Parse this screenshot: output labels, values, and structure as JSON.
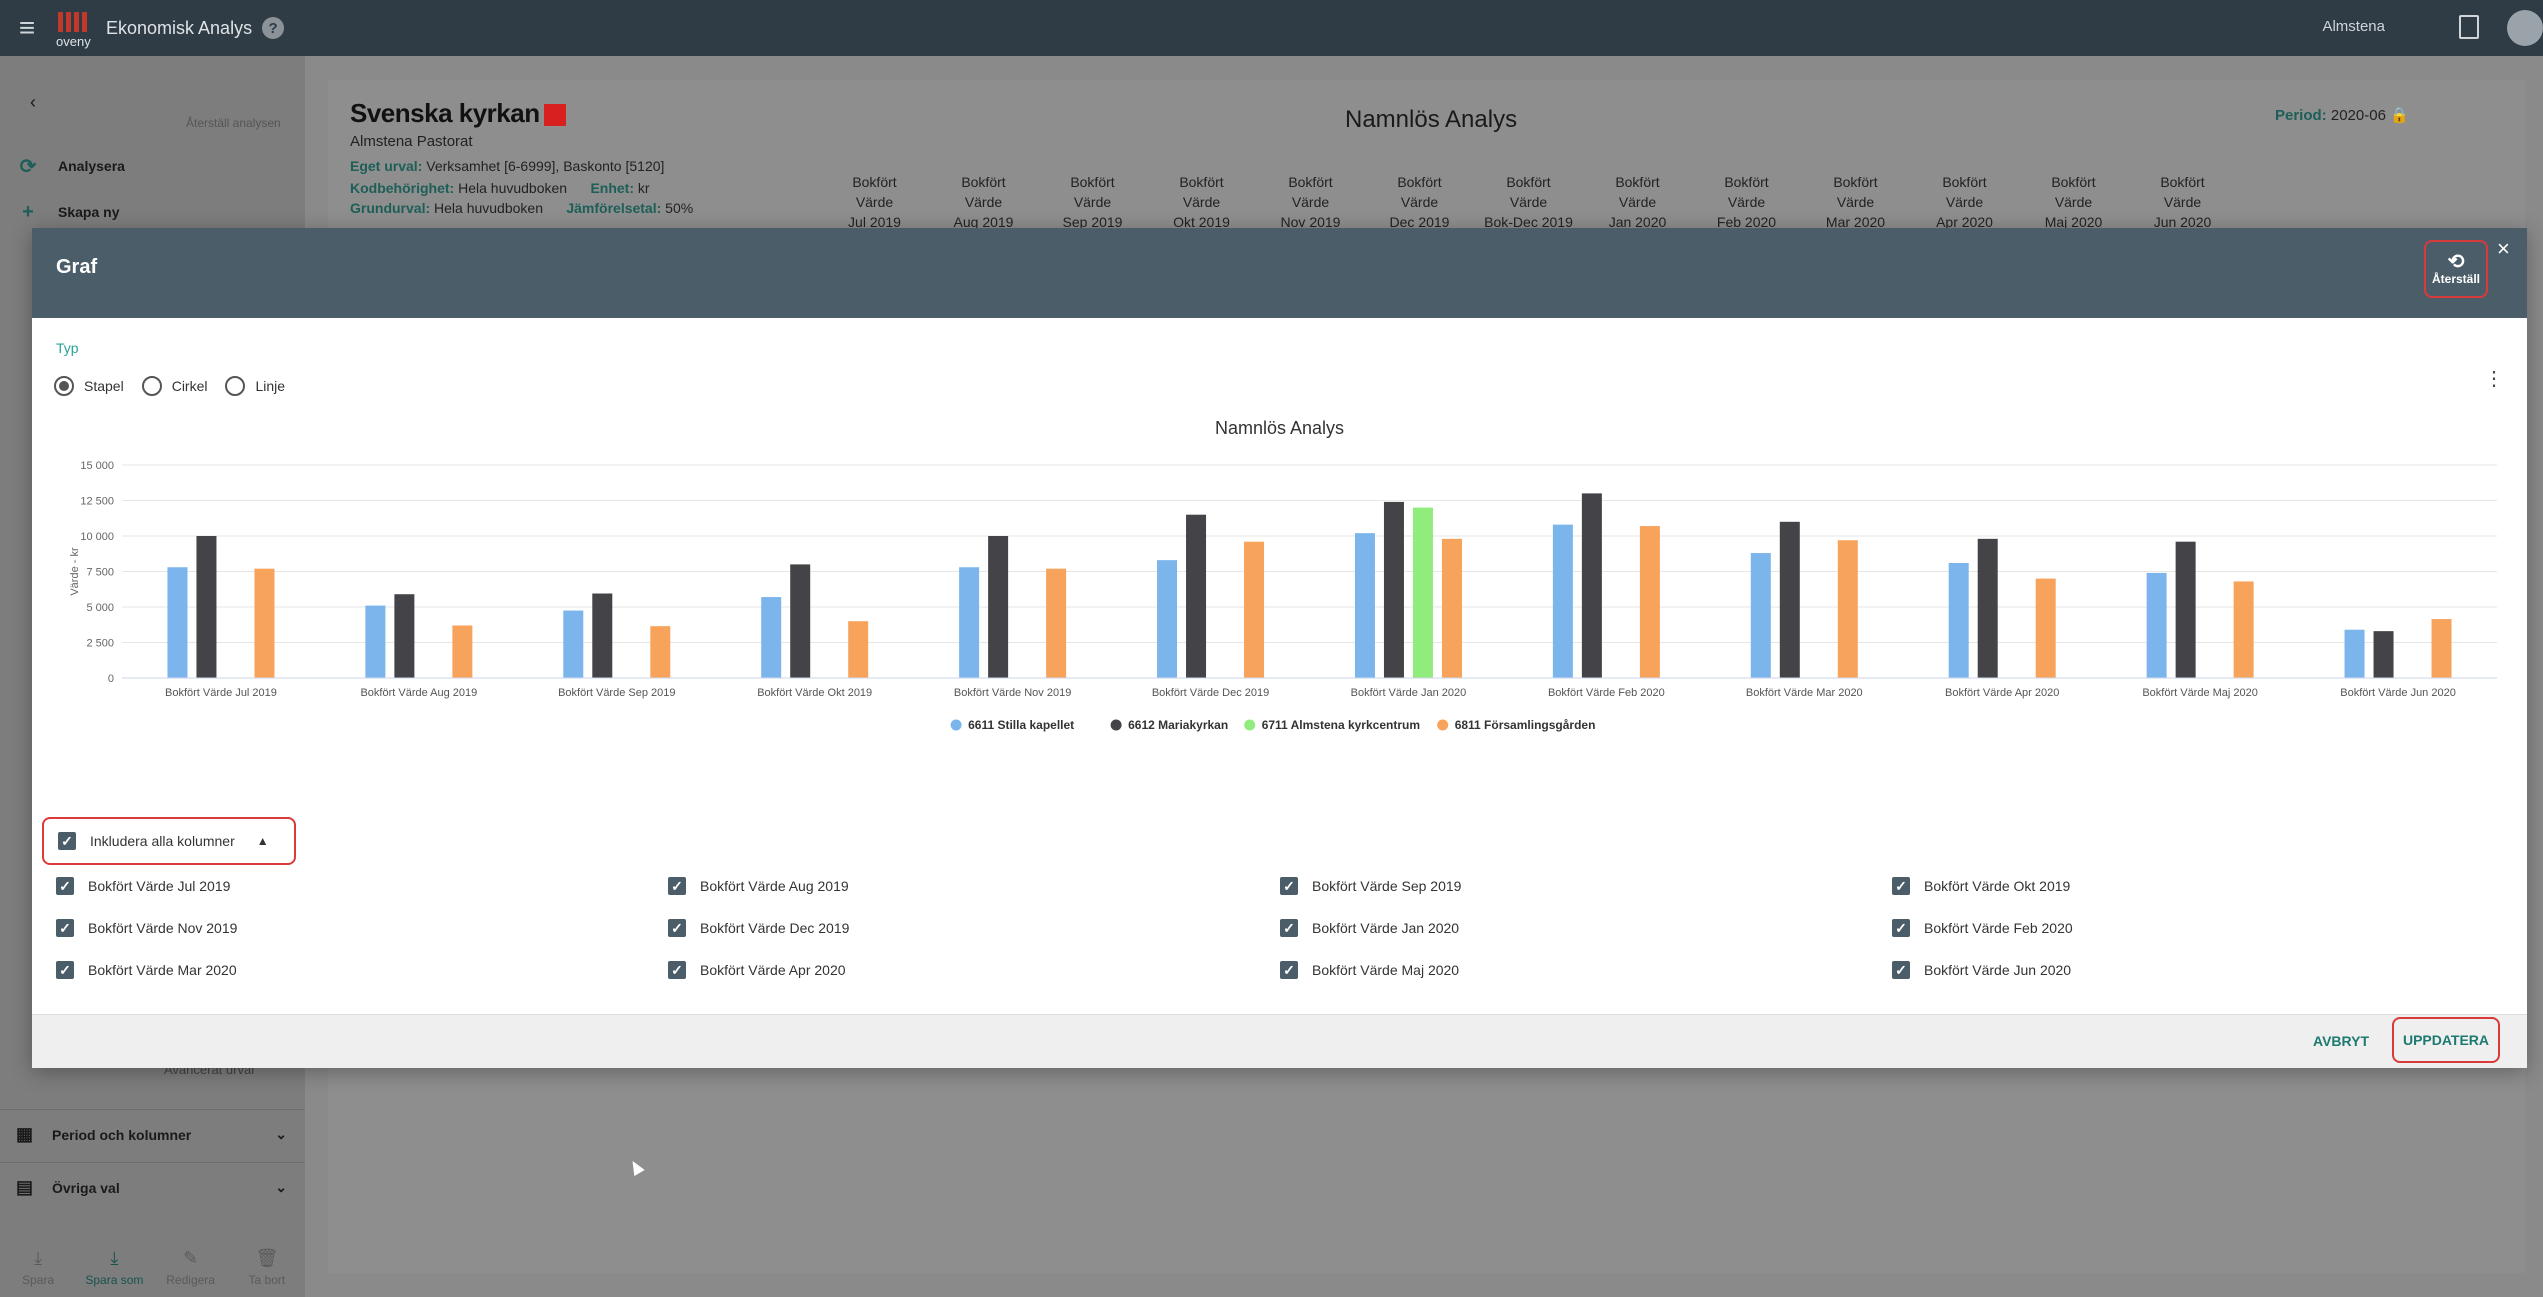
{
  "app": {
    "title": "Ekonomisk Analys",
    "logo_text": "oveny",
    "user": "Almstena"
  },
  "sidebar": {
    "reset_label": "Återställ analysen",
    "items": [
      {
        "label": "Analysera"
      },
      {
        "label": "Skapa ny"
      }
    ],
    "advanced": "Avancerat urval",
    "sections": [
      {
        "label": "Period och kolumner"
      },
      {
        "label": "Övriga val"
      }
    ],
    "bottom": [
      {
        "label": "Spara"
      },
      {
        "label": "Spara som"
      },
      {
        "label": "Redigera"
      },
      {
        "label": "Ta bort"
      }
    ]
  },
  "report": {
    "brand": "Svenska kyrkan",
    "org": "Almstena Pastorat",
    "title": "Namnlös Analys",
    "period_label": "Period:",
    "period_value": "2020-06",
    "eget_urval_label": "Eget urval:",
    "eget_urval_value": "Verksamhet [6-6999], Baskonto [5120]",
    "kodbehorighet_label": "Kodbehörighet:",
    "kodbehorighet_value": "Hela huvudboken",
    "grundurval_label": "Grundurval:",
    "grundurval_value": "Hela huvudboken",
    "enhet_label": "Enhet:",
    "enhet_value": "kr",
    "jamforelse_label": "Jämförelsetal:",
    "jamforelse_value": "50%",
    "columns": [
      "Bokfört Värde Jul 2019",
      "Bokfört Värde Aug 2019",
      "Bokfört Värde Sep 2019",
      "Bokfört Värde Okt 2019",
      "Bokfört Värde Nov 2019",
      "Bokfört Värde Dec 2019",
      "Bokfört Värde Bok-Dec 2019",
      "Bokfört Värde Jan 2020",
      "Bokfört Värde Feb 2020",
      "Bokfört Värde Mar 2020",
      "Bokfört Värde Apr 2020",
      "Bokfört Värde Maj 2020",
      "Bokfört Värde Jun 2020"
    ]
  },
  "dialog": {
    "title": "Graf",
    "reset_label": "Återställ",
    "typ_label": "Typ",
    "types": [
      {
        "label": "Stapel",
        "selected": true
      },
      {
        "label": "Cirkel",
        "selected": false
      },
      {
        "label": "Linje",
        "selected": false
      }
    ],
    "include_all_label": "Inkludera alla kolumner",
    "columns": [
      "Bokfört Värde Jul 2019",
      "Bokfört Värde Aug 2019",
      "Bokfört Värde Sep 2019",
      "Bokfört Värde Okt 2019",
      "Bokfört Värde Nov 2019",
      "Bokfört Värde Dec 2019",
      "Bokfört Värde Jan 2020",
      "Bokfört Värde Feb 2020",
      "Bokfört Värde Mar 2020",
      "Bokfört Värde Apr 2020",
      "Bokfört Värde Maj 2020",
      "Bokfört Värde Jun 2020"
    ],
    "cancel_label": "AVBRYT",
    "update_label": "UPPDATERA"
  },
  "chart_data": {
    "type": "bar",
    "title": "Namnlös Analys",
    "ylabel": "Värde - kr",
    "ylim": [
      0,
      15000
    ],
    "yticks": [
      0,
      2500,
      5000,
      7500,
      10000,
      12500,
      15000
    ],
    "ytick_labels": [
      "0",
      "2 500",
      "5 000",
      "7 500",
      "10 000",
      "12 500",
      "15 000"
    ],
    "grid": true,
    "legend_position": "bottom",
    "categories": [
      "Bokfört Värde Jul 2019",
      "Bokfört Värde Aug 2019",
      "Bokfört Värde Sep 2019",
      "Bokfört Värde Okt 2019",
      "Bokfört Värde Nov 2019",
      "Bokfört Värde Dec 2019",
      "Bokfört Värde Jan 2020",
      "Bokfört Värde Feb 2020",
      "Bokfört Värde Mar 2020",
      "Bokfört Värde Apr 2020",
      "Bokfört Värde Maj 2020",
      "Bokfört Värde Jun 2020"
    ],
    "series": [
      {
        "name": "6611 Stilla kapellet",
        "color": "#7cb5ec",
        "values": [
          7800,
          5100,
          4750,
          5700,
          7800,
          8300,
          10200,
          10800,
          8800,
          8100,
          7400,
          3400
        ]
      },
      {
        "name": "6612 Mariakyrkan",
        "color": "#434348",
        "values": [
          10000,
          5900,
          5950,
          8000,
          10000,
          11500,
          12400,
          13000,
          11000,
          9800,
          9600,
          3300
        ]
      },
      {
        "name": "6711 Almstena kyrkcentrum",
        "color": "#90ed7d",
        "values": [
          0,
          0,
          0,
          0,
          0,
          0,
          12000,
          0,
          0,
          0,
          0,
          0
        ]
      },
      {
        "name": "6811 Församlingsgården",
        "color": "#f7a35c",
        "values": [
          7700,
          3700,
          3650,
          4000,
          7700,
          9600,
          9800,
          10700,
          9700,
          7000,
          6800,
          4150
        ]
      }
    ]
  }
}
